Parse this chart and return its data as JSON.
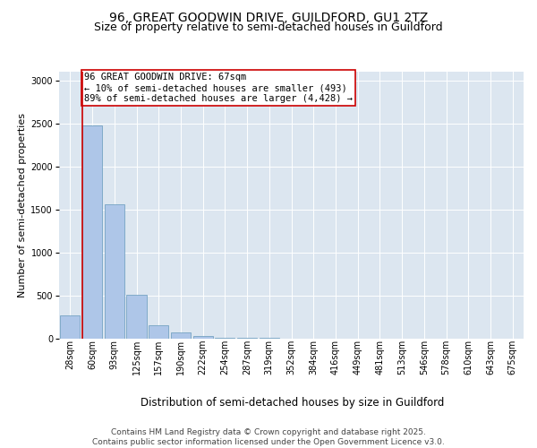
{
  "title_line1": "96, GREAT GOODWIN DRIVE, GUILDFORD, GU1 2TZ",
  "title_line2": "Size of property relative to semi-detached houses in Guildford",
  "xlabel": "Distribution of semi-detached houses by size in Guildford",
  "ylabel": "Number of semi-detached properties",
  "bin_labels": [
    "28sqm",
    "60sqm",
    "93sqm",
    "125sqm",
    "157sqm",
    "190sqm",
    "222sqm",
    "254sqm",
    "287sqm",
    "319sqm",
    "352sqm",
    "384sqm",
    "416sqm",
    "449sqm",
    "481sqm",
    "513sqm",
    "546sqm",
    "578sqm",
    "610sqm",
    "643sqm",
    "675sqm"
  ],
  "bar_heights": [
    270,
    2470,
    1560,
    510,
    150,
    65,
    25,
    8,
    2,
    1,
    0,
    0,
    0,
    0,
    0,
    0,
    0,
    0,
    0,
    0,
    0
  ],
  "bar_color": "#aec6e8",
  "bar_edge_color": "#6699bb",
  "vline_color": "#cc0000",
  "annotation_text": "96 GREAT GOODWIN DRIVE: 67sqm\n← 10% of semi-detached houses are smaller (493)\n89% of semi-detached houses are larger (4,428) →",
  "annotation_box_color": "#ffffff",
  "annotation_box_edgecolor": "#cc0000",
  "ylim": [
    0,
    3100
  ],
  "yticks": [
    0,
    500,
    1000,
    1500,
    2000,
    2500,
    3000
  ],
  "plot_bg_color": "#dce6f0",
  "footer_line1": "Contains HM Land Registry data © Crown copyright and database right 2025.",
  "footer_line2": "Contains public sector information licensed under the Open Government Licence v3.0.",
  "title_fontsize": 10,
  "subtitle_fontsize": 9,
  "annotation_fontsize": 7.5,
  "ylabel_fontsize": 8,
  "xlabel_fontsize": 8.5,
  "tick_fontsize": 7,
  "footer_fontsize": 6.5
}
